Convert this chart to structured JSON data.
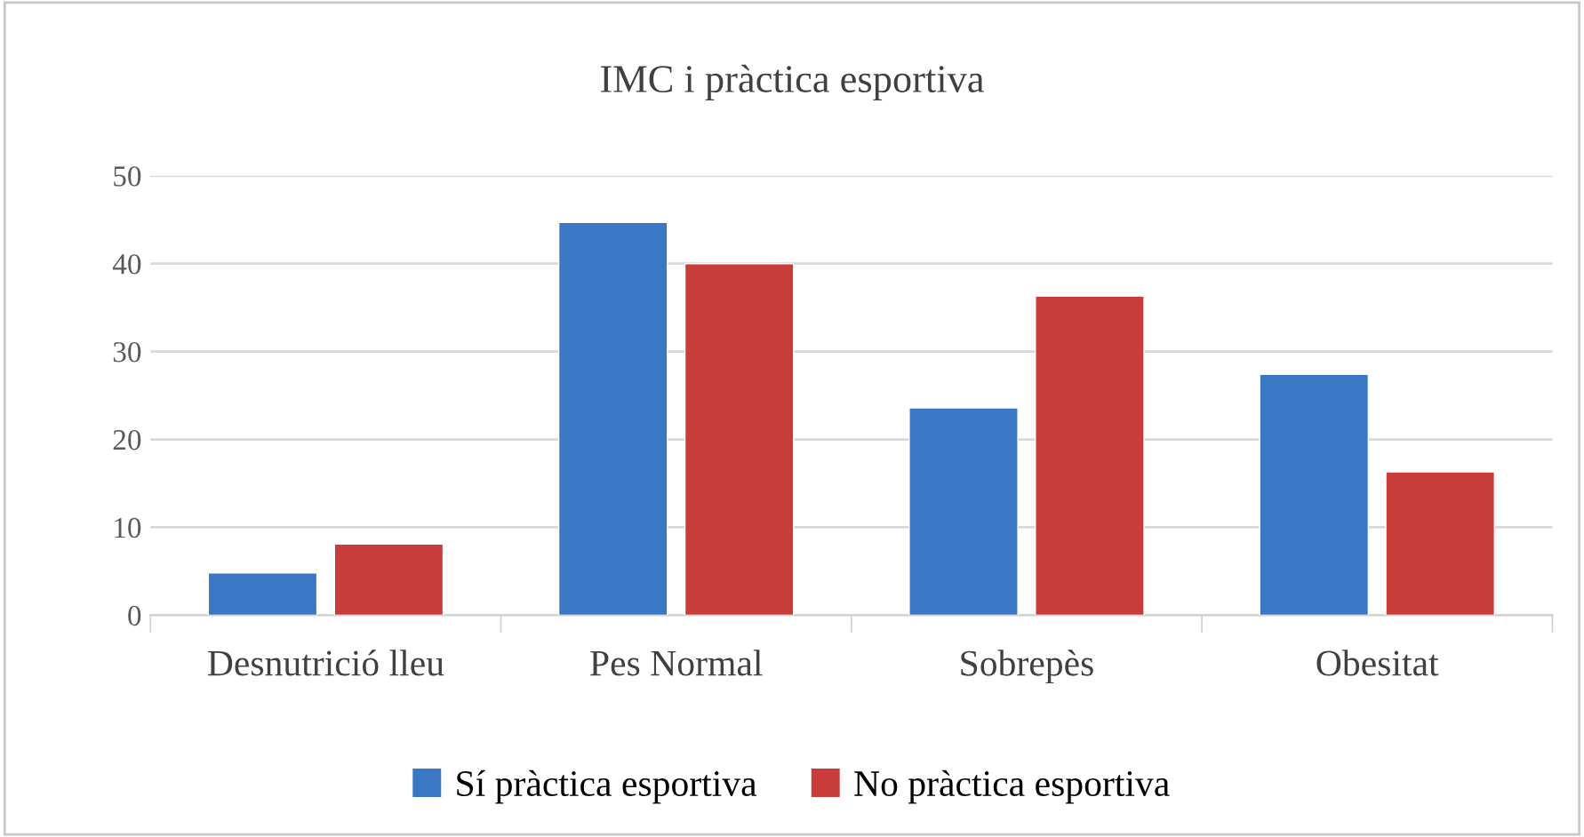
{
  "chart_data": {
    "type": "bar",
    "title": "IMC i pràctica esportiva",
    "categories": [
      "Desnutrició lleu",
      "Pes Normal",
      "Sobrepès",
      "Obesitat"
    ],
    "series": [
      {
        "name": "Sí pràctica esportiva",
        "color": "#3a78c4",
        "values": [
          4.8,
          44.7,
          23.6,
          27.4
        ]
      },
      {
        "name": "No pràctica esportiva",
        "color": "#c83c3a",
        "values": [
          8.1,
          40,
          36.3,
          16.3
        ]
      }
    ],
    "ylim": [
      0,
      50
    ],
    "yticks": [
      0,
      10,
      20,
      30,
      40,
      50
    ],
    "grid": "y",
    "legend": "bottom"
  }
}
